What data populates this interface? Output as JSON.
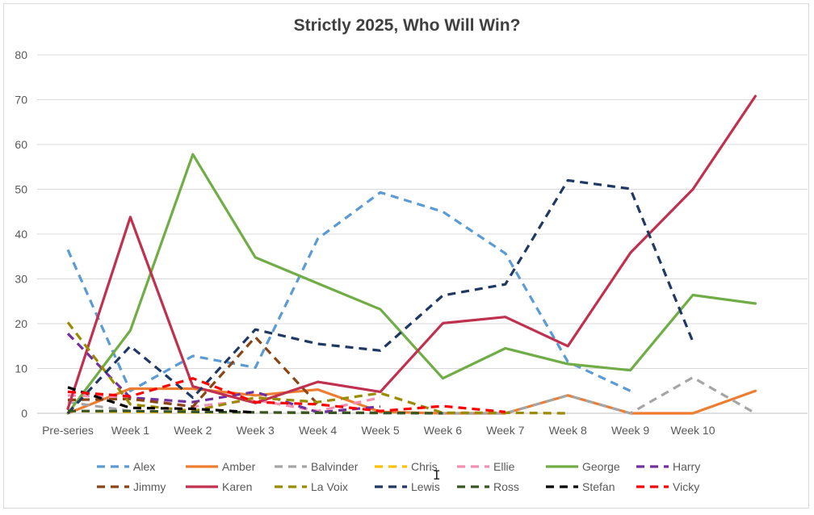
{
  "chart_data": {
    "type": "line",
    "title": "Strictly 2025, Who Will Win?",
    "xlabel": "",
    "ylabel": "",
    "ylim": [
      0,
      80
    ],
    "yticks": [
      0,
      10,
      20,
      30,
      40,
      50,
      60,
      70,
      80
    ],
    "grid": true,
    "legend_position": "bottom",
    "categories": [
      "Pre-series",
      "Week 1",
      "Week 2",
      "Week 3",
      "Week 4",
      "Week 5",
      "Week 6",
      "Week 7",
      "Week 8",
      "Week 9",
      "Week 10",
      ""
    ],
    "series": [
      {
        "name": "Alex",
        "color": "#5b9bd5",
        "dash": true,
        "values": [
          36.5,
          5,
          12.8,
          10.2,
          39,
          49.3,
          45,
          35.7,
          11.5,
          5,
          null,
          null
        ]
      },
      {
        "name": "Amber",
        "color": "#ed7d31",
        "dash": false,
        "values": [
          0,
          5.5,
          5.5,
          4,
          5.3,
          0.3,
          0,
          0,
          4,
          0,
          0,
          5
        ]
      },
      {
        "name": "Balvinder",
        "color": "#a5a5a5",
        "dash": true,
        "values": [
          2.5,
          0.5,
          0.3,
          0.2,
          0.2,
          0,
          0,
          0,
          4,
          0,
          8,
          0
        ]
      },
      {
        "name": "Chris",
        "color": "#ffc000",
        "dash": true,
        "values": [
          0.5,
          0.3,
          0.2,
          0.2,
          0.1,
          0.1,
          null,
          null,
          null,
          null,
          null,
          null
        ]
      },
      {
        "name": "Ellie",
        "color": "#f48fb1",
        "dash": true,
        "values": [
          4,
          3.5,
          1.5,
          3,
          0.5,
          3.5,
          null,
          null,
          null,
          null,
          null,
          null
        ]
      },
      {
        "name": "George",
        "color": "#70ad47",
        "dash": false,
        "values": [
          0,
          18.5,
          57.8,
          34.8,
          29,
          23.2,
          7.8,
          14.5,
          11,
          9.6,
          26.4,
          24.5
        ]
      },
      {
        "name": "Harry",
        "color": "#7030a0",
        "dash": true,
        "values": [
          17.8,
          3.5,
          2.5,
          4.8,
          0.2,
          1.5,
          null,
          null,
          null,
          null,
          null,
          null
        ]
      },
      {
        "name": "Jimmy",
        "color": "#8b4513",
        "dash": true,
        "values": [
          3,
          3.2,
          1.5,
          17,
          2,
          null,
          null,
          null,
          null,
          null,
          null,
          null
        ]
      },
      {
        "name": "Karen",
        "color": "#c0304f",
        "dash": false,
        "values": [
          1,
          43.8,
          6,
          2.3,
          7,
          4.8,
          20.1,
          21.5,
          15,
          35.8,
          50,
          70.8
        ]
      },
      {
        "name": "La Voix",
        "color": "#9a8b00",
        "dash": true,
        "values": [
          20.3,
          2,
          0.5,
          3.5,
          2.5,
          4.5,
          0.1,
          0.1,
          0,
          null,
          null,
          null
        ]
      },
      {
        "name": "Lewis",
        "color": "#1f3864",
        "dash": true,
        "values": [
          0,
          15,
          3.5,
          18.7,
          15.5,
          14,
          26.3,
          28.8,
          52,
          50.1,
          16,
          null
        ]
      },
      {
        "name": "Ross",
        "color": "#375623",
        "dash": true,
        "values": [
          0.5,
          0.5,
          0.3,
          0.2,
          0.1,
          0.1,
          0,
          null,
          null,
          null,
          null,
          null
        ]
      },
      {
        "name": "Stefan",
        "color": "#000000",
        "dash": true,
        "values": [
          5.8,
          1.2,
          1,
          0.2,
          null,
          null,
          null,
          null,
          null,
          null,
          null,
          null
        ]
      },
      {
        "name": "Vicky",
        "color": "#ff0000",
        "dash": true,
        "values": [
          4.8,
          3.8,
          7.8,
          2.5,
          2,
          0.5,
          1.6,
          0.3,
          null,
          null,
          null,
          null
        ]
      }
    ]
  }
}
